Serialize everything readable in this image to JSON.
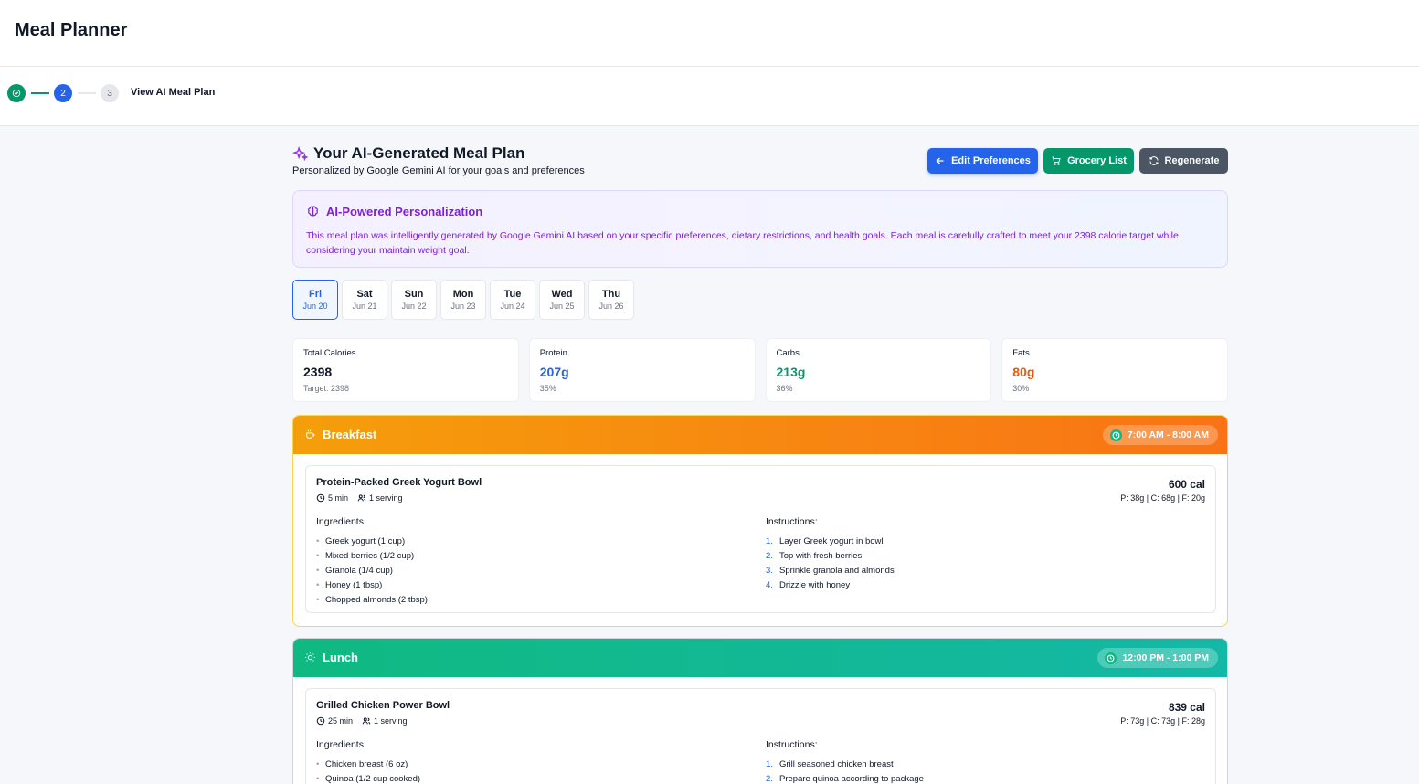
{
  "app": {
    "title": "Meal Planner"
  },
  "stepper": {
    "steps": [
      "",
      "2",
      "3"
    ],
    "current_label": "View AI Meal Plan"
  },
  "header": {
    "title": "Your AI-Generated Meal Plan",
    "subtitle": "Personalized by Google Gemini AI for your goals and preferences"
  },
  "buttons": {
    "edit": "Edit Preferences",
    "grocery": "Grocery List",
    "regenerate": "Regenerate"
  },
  "ai_box": {
    "title": "AI-Powered Personalization",
    "text": "This meal plan was intelligently generated by Google Gemini AI based on your specific preferences, dietary restrictions, and health goals. Each meal is carefully crafted to meet your 2398 calorie target while considering your maintain weight goal."
  },
  "days": [
    {
      "name": "Fri",
      "date": "Jun 20",
      "active": true
    },
    {
      "name": "Sat",
      "date": "Jun 21"
    },
    {
      "name": "Sun",
      "date": "Jun 22"
    },
    {
      "name": "Mon",
      "date": "Jun 23"
    },
    {
      "name": "Tue",
      "date": "Jun 24"
    },
    {
      "name": "Wed",
      "date": "Jun 25"
    },
    {
      "name": "Thu",
      "date": "Jun 26"
    }
  ],
  "stats": [
    {
      "label": "Total Calories",
      "value": "2398",
      "sub": "Target: 2398",
      "color": "#111827"
    },
    {
      "label": "Protein",
      "value": "207g",
      "sub": "35%",
      "color": "#2563eb"
    },
    {
      "label": "Carbs",
      "value": "213g",
      "sub": "36%",
      "color": "#059669"
    },
    {
      "label": "Fats",
      "value": "80g",
      "sub": "30%",
      "color": "#ea580c"
    }
  ],
  "meals": {
    "breakfast": {
      "name": "Breakfast",
      "time": "7:00 AM - 8:00 AM",
      "recipe": "Protein-Packed Greek Yogurt Bowl",
      "prep": "5 min",
      "servings": "1 serving",
      "calories": "600 cal",
      "macros": "P: 38g | C: 68g | F: 20g",
      "ingredients_label": "Ingredients:",
      "instructions_label": "Instructions:",
      "ingredients": [
        "Greek yogurt (1 cup)",
        "Mixed berries (1/2 cup)",
        "Granola (1/4 cup)",
        "Honey (1 tbsp)",
        "Chopped almonds (2 tbsp)"
      ],
      "instructions": [
        "Layer Greek yogurt in bowl",
        "Top with fresh berries",
        "Sprinkle granola and almonds",
        "Drizzle with honey"
      ]
    },
    "lunch": {
      "name": "Lunch",
      "time": "12:00 PM - 1:00 PM",
      "recipe": "Grilled Chicken Power Bowl",
      "prep": "25 min",
      "servings": "1 serving",
      "calories": "839 cal",
      "macros": "P: 73g | C: 73g | F: 28g",
      "ingredients_label": "Ingredients:",
      "instructions_label": "Instructions:",
      "ingredients": [
        "Chicken breast (6 oz)",
        "Quinoa (1/2 cup cooked)"
      ],
      "instructions": [
        "Grill seasoned chicken breast",
        "Prepare quinoa according to package"
      ]
    }
  }
}
